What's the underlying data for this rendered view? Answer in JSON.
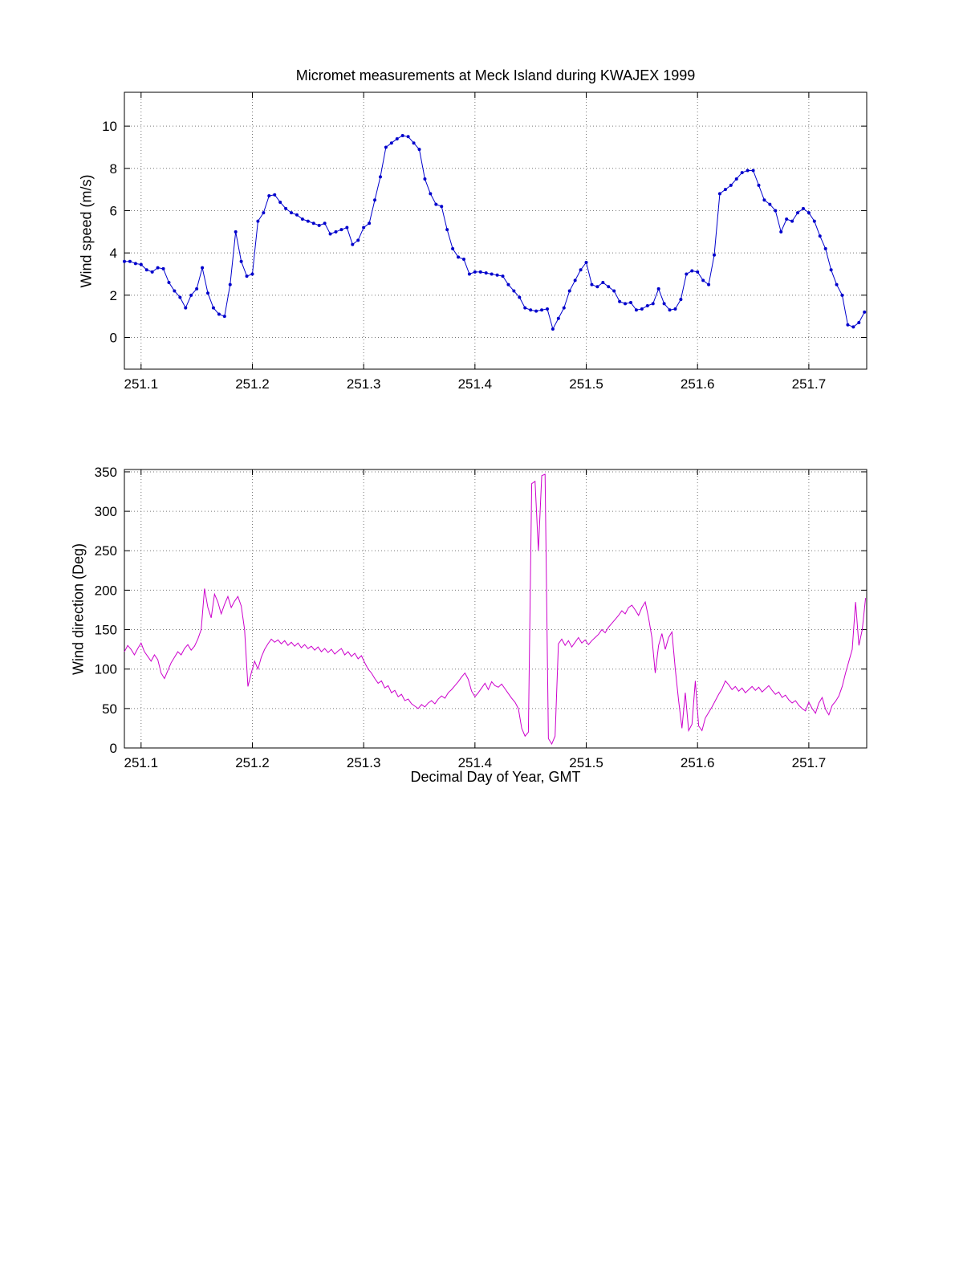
{
  "figure": {
    "title": "Micromet measurements at Meck Island during KWAJEX 1999",
    "xlabel": "Decimal Day of Year, GMT"
  },
  "chart_data": [
    {
      "type": "line",
      "series_name": "wind-speed-line",
      "title": "Micromet measurements at Meck Island during KWAJEX 1999",
      "xlabel": "",
      "ylabel": "Wind speed (m/s)",
      "line_color": "#0000CC",
      "marker": "dot",
      "grid": true,
      "legend": "none",
      "xlim": [
        251.085,
        251.752
      ],
      "ylim": [
        -1.5,
        11.6
      ],
      "xticks": [
        251.1,
        251.2,
        251.3,
        251.4,
        251.5,
        251.6,
        251.7
      ],
      "xtick_labels": [
        "251.1",
        "251.2",
        "251.3",
        "251.4",
        "251.5",
        "251.6",
        "251.7"
      ],
      "yticks": [
        0,
        2,
        4,
        6,
        8,
        10
      ],
      "x_start": 251.085,
      "x_step": 0.005,
      "values": [
        3.6,
        3.6,
        3.5,
        3.45,
        3.2,
        3.1,
        3.3,
        3.25,
        2.6,
        2.2,
        1.9,
        1.4,
        2.0,
        2.3,
        3.3,
        2.1,
        1.4,
        1.1,
        1.0,
        2.5,
        5.0,
        3.6,
        2.9,
        3.0,
        5.5,
        5.9,
        6.7,
        6.75,
        6.4,
        6.1,
        5.9,
        5.8,
        5.6,
        5.5,
        5.4,
        5.3,
        5.4,
        4.9,
        5.0,
        5.1,
        5.2,
        4.4,
        4.6,
        5.2,
        5.4,
        6.5,
        7.6,
        9.0,
        9.2,
        9.4,
        9.55,
        9.5,
        9.2,
        8.9,
        7.5,
        6.8,
        6.3,
        6.2,
        5.1,
        4.2,
        3.8,
        3.7,
        3.0,
        3.1,
        3.1,
        3.05,
        3.0,
        2.95,
        2.9,
        2.5,
        2.2,
        1.9,
        1.4,
        1.3,
        1.25,
        1.3,
        1.35,
        0.4,
        0.9,
        1.4,
        2.2,
        2.7,
        3.2,
        3.55,
        2.5,
        2.4,
        2.6,
        2.4,
        2.2,
        1.7,
        1.6,
        1.65,
        1.3,
        1.35,
        1.5,
        1.6,
        2.3,
        1.6,
        1.3,
        1.35,
        1.8,
        3.0,
        3.15,
        3.1,
        2.7,
        2.5,
        3.9,
        6.8,
        7.0,
        7.2,
        7.5,
        7.8,
        7.9,
        7.9,
        7.2,
        6.5,
        6.3,
        6.0,
        5.0,
        5.6,
        5.5,
        5.9,
        6.1,
        5.9,
        5.5,
        4.8,
        4.2,
        3.2,
        2.5,
        2.0,
        0.6,
        0.5,
        0.7,
        1.2
      ]
    },
    {
      "type": "line",
      "series_name": "wind-direction-line",
      "title": "",
      "xlabel": "Decimal Day of Year, GMT",
      "ylabel": "Wind direction (Deg)",
      "line_color": "#CC00CC",
      "marker": "none",
      "grid": true,
      "legend": "none",
      "xlim": [
        251.085,
        251.752
      ],
      "ylim": [
        0,
        353
      ],
      "xticks": [
        251.1,
        251.2,
        251.3,
        251.4,
        251.5,
        251.6,
        251.7
      ],
      "xtick_labels": [
        "251.1",
        "251.2",
        "251.3",
        "251.4",
        "251.5",
        "251.6",
        "251.7"
      ],
      "yticks": [
        0,
        50,
        100,
        150,
        200,
        250,
        300,
        350
      ],
      "x_start": 251.085,
      "x_step": 0.003,
      "values": [
        122,
        130,
        125,
        118,
        126,
        133,
        122,
        116,
        110,
        118,
        112,
        95,
        88,
        98,
        108,
        115,
        122,
        118,
        126,
        131,
        124,
        129,
        138,
        150,
        202,
        178,
        165,
        195,
        185,
        170,
        182,
        192,
        178,
        186,
        192,
        180,
        150,
        78,
        95,
        110,
        100,
        115,
        125,
        132,
        138,
        134,
        137,
        132,
        136,
        130,
        134,
        129,
        133,
        127,
        131,
        126,
        129,
        124,
        128,
        122,
        126,
        121,
        125,
        119,
        123,
        126,
        118,
        122,
        116,
        120,
        113,
        117,
        108,
        100,
        95,
        88,
        82,
        85,
        76,
        79,
        70,
        73,
        65,
        68,
        60,
        62,
        56,
        53,
        50,
        55,
        52,
        57,
        60,
        56,
        62,
        66,
        63,
        70,
        74,
        79,
        84,
        90,
        95,
        87,
        72,
        65,
        70,
        76,
        82,
        74,
        84,
        79,
        77,
        81,
        75,
        69,
        63,
        58,
        50,
        25,
        15,
        20,
        335,
        338,
        250,
        345,
        347,
        12,
        5,
        15,
        132,
        138,
        130,
        136,
        128,
        134,
        140,
        133,
        137,
        131,
        136,
        140,
        144,
        150,
        146,
        153,
        158,
        163,
        168,
        174,
        170,
        178,
        181,
        175,
        168,
        178,
        185,
        165,
        140,
        95,
        130,
        145,
        125,
        140,
        147,
        100,
        60,
        25,
        70,
        22,
        30,
        85,
        28,
        22,
        38,
        45,
        52,
        60,
        68,
        75,
        85,
        80,
        74,
        78,
        72,
        76,
        70,
        74,
        78,
        73,
        77,
        71,
        75,
        79,
        73,
        68,
        71,
        64,
        67,
        61,
        57,
        60,
        54,
        50,
        47,
        58,
        50,
        44,
        57,
        64,
        49,
        42,
        54,
        59,
        66,
        78,
        95,
        110,
        125,
        185,
        130,
        150,
        190
      ]
    }
  ]
}
